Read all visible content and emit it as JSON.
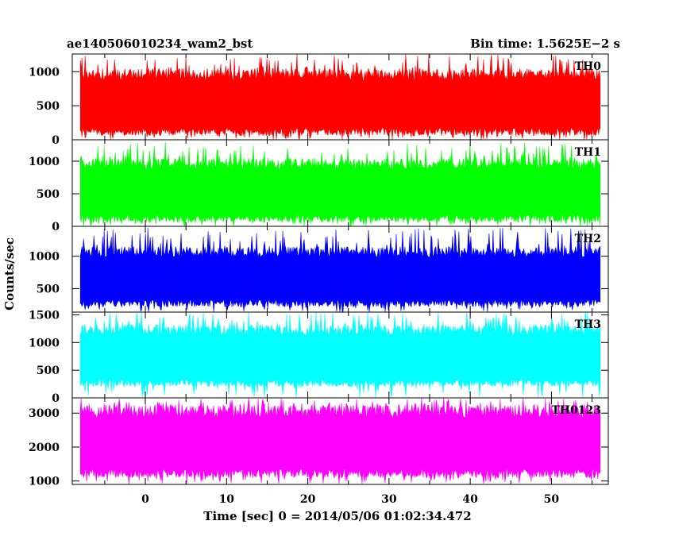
{
  "header": {
    "left_title": "ae140506010234_wam2_bst",
    "right_title": "Bin time: 1.5625E−2 s"
  },
  "chart_data": {
    "type": "line",
    "title": "ae140506010234_wam2_bst",
    "subtitle": "Bin time: 1.5625E−2 s",
    "xlabel": "Time [sec] 0 = 2014/05/06 01:02:34.472",
    "ylabel": "Counts/sec",
    "xlim": [
      -9,
      57
    ],
    "x_ticks": [
      0,
      10,
      20,
      30,
      40,
      50
    ],
    "x_tick_labels": [
      "0",
      "10",
      "20",
      "30",
      "40",
      "50"
    ],
    "x_data_range": [
      -8,
      56
    ],
    "bin_time_s": 0.015625,
    "grid": false,
    "panels": [
      {
        "label": "TH0",
        "color": "#ff0000",
        "ylim": [
          0,
          1260
        ],
        "y_ticks": [
          0,
          500,
          1000
        ],
        "y_tick_labels": [
          "0",
          "500",
          "1000"
        ],
        "typical_low": 60,
        "typical_high": 1050,
        "extreme_high": 1260
      },
      {
        "label": "TH1",
        "color": "#00ff00",
        "ylim": [
          0,
          1330
        ],
        "y_ticks": [
          0,
          500,
          1000
        ],
        "y_tick_labels": [
          "0",
          "500",
          "1000"
        ],
        "typical_low": 60,
        "typical_high": 1050,
        "extreme_high": 1300
      },
      {
        "label": "TH2",
        "color": "#0000ff",
        "ylim": [
          140,
          1460
        ],
        "y_ticks": [
          500,
          1000
        ],
        "y_tick_labels": [
          "500",
          "1000"
        ],
        "typical_low": 220,
        "typical_high": 1150,
        "extreme_high": 1450
      },
      {
        "label": "TH3",
        "color": "#00ffff",
        "ylim": [
          0,
          1550
        ],
        "y_ticks": [
          0,
          500,
          1000,
          1500
        ],
        "y_tick_labels": [
          "0",
          "500",
          "1000",
          "1500"
        ],
        "typical_low": 200,
        "typical_high": 1330,
        "extreme_high": 1550
      },
      {
        "label": "TH0123",
        "color": "#ff00ff",
        "ylim": [
          900,
          3450
        ],
        "y_ticks": [
          1000,
          2000,
          3000
        ],
        "y_tick_labels": [
          "1000",
          "2000",
          "3000"
        ],
        "typical_low": 1100,
        "typical_high": 3250,
        "extreme_high": 3450
      }
    ]
  }
}
